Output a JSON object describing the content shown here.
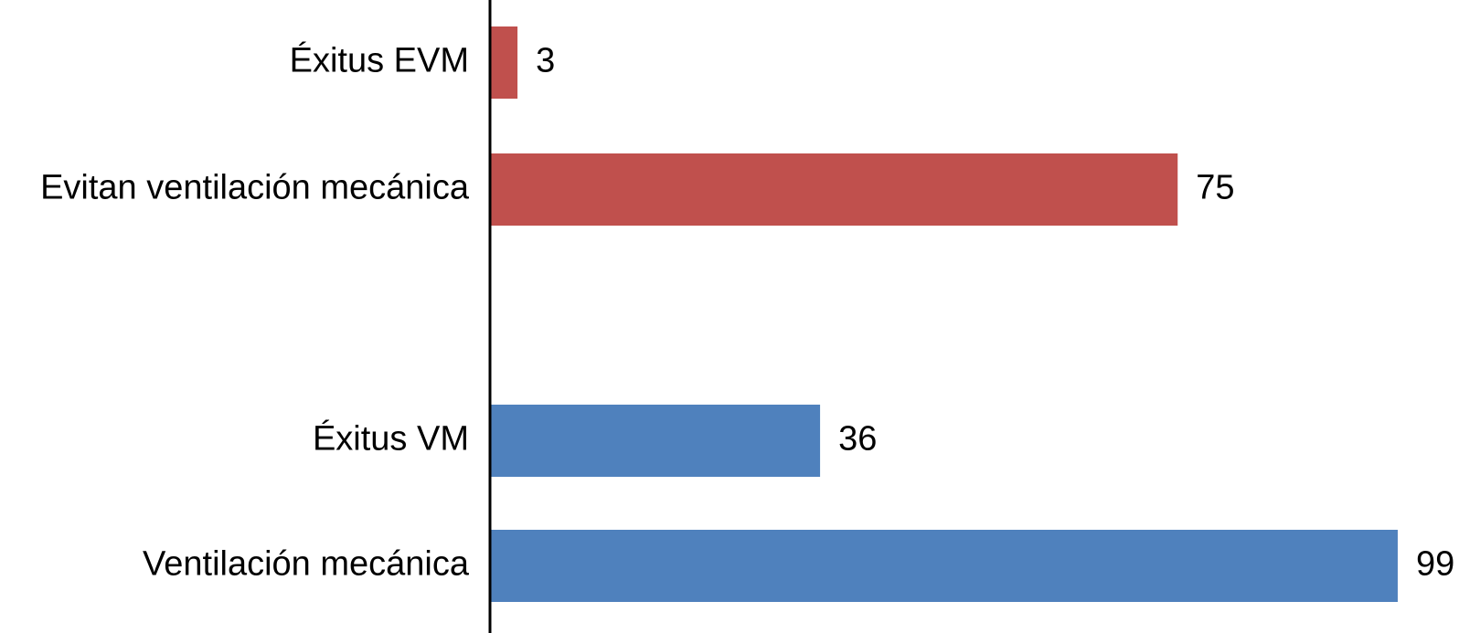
{
  "chart_data": {
    "type": "bar",
    "orientation": "horizontal",
    "title": "",
    "xlabel": "",
    "ylabel": "",
    "xlim": [
      0,
      100
    ],
    "grid": false,
    "legend": "none",
    "gridlines": false,
    "categories": [
      "Éxitus EVM",
      "Evitan ventilación mecánica",
      "Éxitus VM",
      "Ventilación mecánica"
    ],
    "values": [
      3,
      75,
      36,
      99
    ],
    "value_labels": [
      "3",
      "75",
      "36",
      "99"
    ],
    "colors": [
      "#c0504d",
      "#c0504d",
      "#4f81bd",
      "#4f81bd"
    ]
  }
}
